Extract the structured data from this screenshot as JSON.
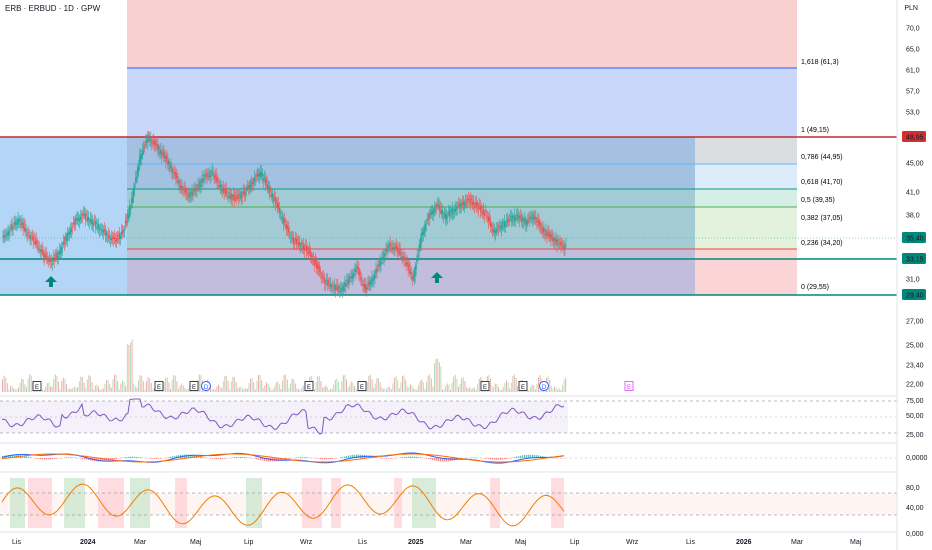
{
  "header": {
    "symbol_title": "ERB · ERBUD · 1D · GPW",
    "currency": "PLN"
  },
  "colors": {
    "up": "#26a69a",
    "down": "#ef5350",
    "grid": "#f0f3fa",
    "fib_red": "#f8d0d0",
    "fib_blue": "#c9d7fb",
    "zone_blue": "#9cc9f5",
    "rsi_line": "#7e57c2",
    "macd_line": "#2962ff",
    "signal_line": "#ff6d00",
    "stoch_line": "#f57c00"
  },
  "price_axis": {
    "labels": [
      "70,0",
      "65,0",
      "61,0",
      "57,0",
      "53,0",
      "48,95",
      "45,00",
      "41,0",
      "38,0",
      "35,40",
      "33,15",
      "31,0",
      "29,40",
      "27,00",
      "25,00",
      "23,40",
      "22,00"
    ],
    "badges": [
      {
        "label": "48,95",
        "color": "#d32f2f"
      },
      {
        "label": "35,40",
        "color": "#00897b"
      },
      {
        "label": "33,15",
        "color": "#00897b"
      },
      {
        "label": "29,40",
        "color": "#00897b"
      }
    ]
  },
  "fib_levels": [
    {
      "label": "1,618 (61,3)",
      "color": "#2962ff"
    },
    {
      "label": "1 (49,15)",
      "color": "#787b86"
    },
    {
      "label": "0,786 (44,95)",
      "color": "#64b5f6"
    },
    {
      "label": "0,618 (41,70)",
      "color": "#089981"
    },
    {
      "label": "0,5 (39,35)",
      "color": "#4caf50"
    },
    {
      "label": "0,382 (37,05)",
      "color": "#66bb6a"
    },
    {
      "label": "0,236 (34,20)",
      "color": "#f44336"
    },
    {
      "label": "0 (29,55)",
      "color": "#787b86"
    }
  ],
  "event_markers": [
    "E",
    "E",
    "E",
    "D",
    "E",
    "E",
    "E",
    "E",
    "D",
    "E"
  ],
  "rsi_axis": [
    "75,00",
    "50,00",
    "25,00"
  ],
  "macd_axis": [
    "0,0000"
  ],
  "stoch_axis": [
    "80,0",
    "40,00",
    "0,000"
  ],
  "time_axis": [
    "Lis",
    "2024",
    "Mar",
    "Maj",
    "Lip",
    "Wrz",
    "Lis",
    "2025",
    "Mar",
    "Maj",
    "Lip",
    "Wrz",
    "Lis",
    "2026",
    "Mar",
    "Maj"
  ],
  "chart_data": {
    "type": "candlestick",
    "series": [
      {
        "values": [
          36.5,
          37.8,
          38.9,
          37.2,
          36.1,
          34.5,
          33.6,
          34.8,
          36.9,
          38.7,
          39.4,
          38.6,
          37.9,
          36.8,
          36.3,
          37.5,
          41.2,
          46.5,
          49.2,
          48.0,
          46.8,
          45.1,
          43.2,
          41.8,
          42.6,
          44.1,
          44.7,
          43.0,
          41.9,
          41.5,
          42.2,
          43.6,
          44.8,
          42.7,
          40.8,
          38.3,
          36.4,
          35.8,
          34.9,
          33.1,
          31.2,
          30.6,
          30.1,
          31.4,
          32.8,
          30.2,
          31.6,
          33.9,
          35.6,
          35.2,
          33.8,
          31.5,
          36.8,
          39.4,
          40.6,
          39.2,
          40.1,
          40.8,
          41.3,
          40.5,
          39.6,
          37.4,
          38.1,
          38.9,
          39.2,
          38.6,
          39.4,
          37.6,
          36.8,
          35.9,
          35.4
        ]
      }
    ]
  }
}
